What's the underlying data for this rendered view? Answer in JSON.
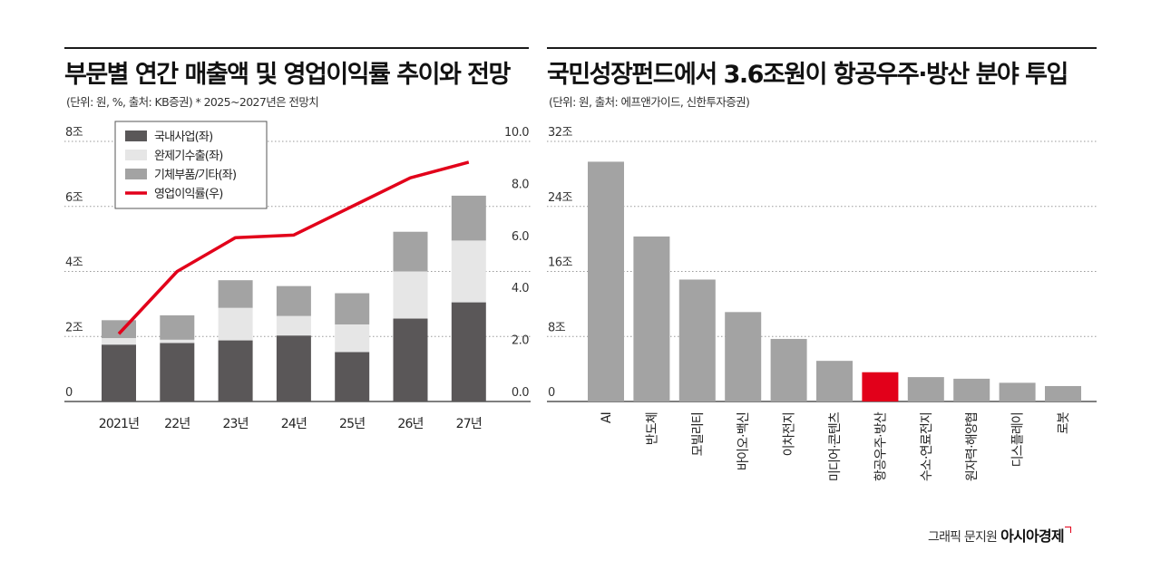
{
  "chart_data": [
    {
      "type": "bar",
      "stacked": true,
      "title": "부문별 연간 매출액 및 영업이익률 추이와 전망",
      "subtitle": "(단위: 원, %, 출처: KB증권)  * 2025~2027년은 전망치",
      "categories": [
        "2021년",
        "22년",
        "23년",
        "24년",
        "25년",
        "26년",
        "27년"
      ],
      "y_left_ticks": [
        "0",
        "2조",
        "4조",
        "6조",
        "8조"
      ],
      "y_left_range": [
        0,
        8
      ],
      "y_right_ticks": [
        "0.0",
        "2.0",
        "4.0",
        "6.0",
        "8.0",
        "10.0"
      ],
      "y_right_range": [
        0,
        10
      ],
      "series": [
        {
          "name": "국내사업(좌)",
          "axis": "left",
          "color": "#5a5758",
          "values": [
            1.75,
            1.8,
            1.88,
            2.03,
            1.52,
            2.55,
            3.05
          ]
        },
        {
          "name": "완제기수출(좌)",
          "axis": "left",
          "color": "#e6e6e6",
          "values": [
            0.2,
            0.1,
            1.0,
            0.6,
            0.85,
            1.45,
            1.9
          ]
        },
        {
          "name": "기체부품/기타(좌)",
          "axis": "left",
          "color": "#a3a3a3",
          "values": [
            0.55,
            0.75,
            0.85,
            0.92,
            0.96,
            1.22,
            1.38
          ]
        },
        {
          "name": "영업이익률(우)",
          "axis": "right",
          "type": "line",
          "color": "#e2001a",
          "values": [
            2.6,
            5.0,
            6.3,
            6.4,
            7.5,
            8.6,
            9.2
          ]
        }
      ],
      "legend_position": "top-left",
      "grid": "horizontal-dotted"
    },
    {
      "type": "bar",
      "title": "국민성장펀드에서 3.6조원이 항공우주·방산 분야 투입",
      "subtitle": "(단위: 원, 출처: 에프앤가이드, 신한투자증권)",
      "categories": [
        "AI",
        "반도체",
        "모빌리티",
        "바이오·백신",
        "이차전지",
        "미디어·콘텐츠",
        "항공우주·방산",
        "수소·연료전지",
        "원자력·해양협",
        "디스플레이",
        "로봇"
      ],
      "values": [
        29.5,
        20.3,
        15.0,
        11.0,
        7.7,
        5.0,
        3.6,
        3.0,
        2.8,
        2.3,
        1.9
      ],
      "highlight_category": "항공우주·방산",
      "bar_color": "#a3a3a3",
      "highlight_color": "#e2001a",
      "y_ticks": [
        "0",
        "8조",
        "16조",
        "24조",
        "32조"
      ],
      "ylim": [
        0,
        32
      ],
      "grid": "horizontal-dotted"
    }
  ],
  "credit": {
    "text": "그래픽 문지원",
    "brand": "아시아경제"
  }
}
